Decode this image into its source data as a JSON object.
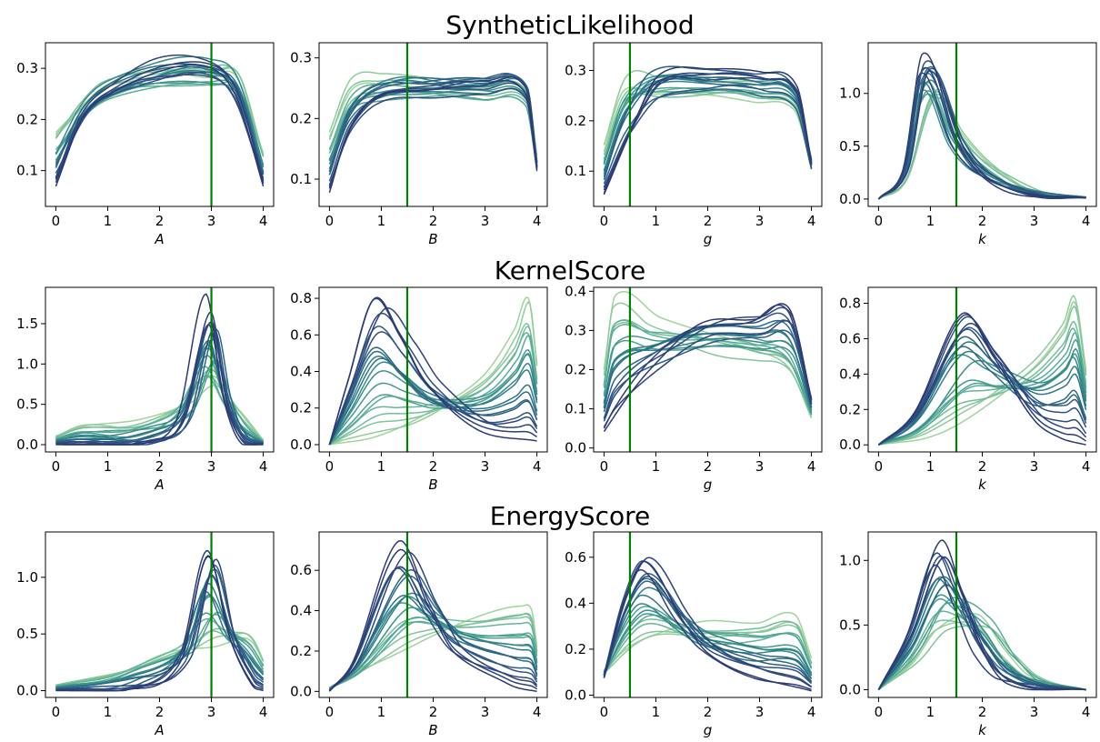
{
  "colors": {
    "truth_line": "#008000",
    "palette": [
      "#9fd49b",
      "#7cc29b",
      "#5cae98",
      "#44998f",
      "#338489",
      "#2b6e86",
      "#2d5a84",
      "#2f457e",
      "#2b3a73"
    ]
  },
  "chart_data": [
    {
      "row_title": "SyntheticLikelihood",
      "panels": [
        {
          "type": "line",
          "xlabel": "A",
          "xlim": [
            -0.2,
            4.2
          ],
          "ylim": [
            0.03,
            0.35
          ],
          "xticks": [
            "0",
            "1",
            "2",
            "3",
            "4"
          ],
          "yticks": [
            "0.1",
            "0.2",
            "0.3"
          ],
          "truth": 3.0,
          "n_curves": 20,
          "light_curve": [
            [
              0,
              0.17
            ],
            [
              0.5,
              0.22
            ],
            [
              1,
              0.26
            ],
            [
              2,
              0.28
            ],
            [
              3,
              0.28
            ],
            [
              3.5,
              0.28
            ],
            [
              4,
              0.13
            ]
          ],
          "dark_curve": [
            [
              0,
              0.07
            ],
            [
              0.5,
              0.2
            ],
            [
              1,
              0.25
            ],
            [
              2,
              0.3
            ],
            [
              3,
              0.3
            ],
            [
              3.5,
              0.24
            ],
            [
              4,
              0.07
            ]
          ]
        },
        {
          "type": "line",
          "xlabel": "B",
          "xlim": [
            -0.2,
            4.2
          ],
          "ylim": [
            0.055,
            0.325
          ],
          "xticks": [
            "0",
            "1",
            "2",
            "3",
            "4"
          ],
          "yticks": [
            "0.1",
            "0.2",
            "0.3"
          ],
          "truth": 1.5,
          "n_curves": 20,
          "light_curve": [
            [
              0,
              0.17
            ],
            [
              0.4,
              0.25
            ],
            [
              1,
              0.255
            ],
            [
              2,
              0.25
            ],
            [
              3,
              0.245
            ],
            [
              3.8,
              0.235
            ],
            [
              4,
              0.13
            ]
          ],
          "dark_curve": [
            [
              0,
              0.08
            ],
            [
              0.4,
              0.18
            ],
            [
              1,
              0.24
            ],
            [
              2,
              0.255
            ],
            [
              3,
              0.26
            ],
            [
              3.8,
              0.25
            ],
            [
              4,
              0.12
            ]
          ]
        },
        {
          "type": "line",
          "xlabel": "g",
          "xlim": [
            -0.2,
            4.2
          ],
          "ylim": [
            0.03,
            0.355
          ],
          "xticks": [
            "0",
            "1",
            "2",
            "3",
            "4"
          ],
          "yticks": [
            "0.1",
            "0.2",
            "0.3"
          ],
          "truth": 0.5,
          "n_curves": 20,
          "light_curve": [
            [
              0,
              0.15
            ],
            [
              0.4,
              0.28
            ],
            [
              1,
              0.275
            ],
            [
              2,
              0.265
            ],
            [
              3,
              0.26
            ],
            [
              3.7,
              0.24
            ],
            [
              4,
              0.12
            ]
          ],
          "dark_curve": [
            [
              0,
              0.05
            ],
            [
              0.5,
              0.17
            ],
            [
              1,
              0.27
            ],
            [
              2,
              0.285
            ],
            [
              3,
              0.275
            ],
            [
              3.7,
              0.25
            ],
            [
              4,
              0.11
            ]
          ]
        },
        {
          "type": "line",
          "xlabel": "k",
          "xlim": [
            -0.2,
            4.2
          ],
          "ylim": [
            -0.07,
            1.48
          ],
          "xticks": [
            "0",
            "1",
            "2",
            "3",
            "4"
          ],
          "yticks": [
            "0.0",
            "0.5",
            "1.0"
          ],
          "truth": 1.5,
          "n_curves": 20,
          "light_curve": [
            [
              0,
              0.0
            ],
            [
              0.5,
              0.2
            ],
            [
              1,
              1.0
            ],
            [
              1.5,
              0.6
            ],
            [
              2,
              0.35
            ],
            [
              3,
              0.08
            ],
            [
              4,
              0.02
            ]
          ],
          "dark_curve": [
            [
              0,
              0.0
            ],
            [
              0.5,
              0.3
            ],
            [
              0.85,
              1.3
            ],
            [
              1.5,
              0.5
            ],
            [
              2,
              0.2
            ],
            [
              3,
              0.04
            ],
            [
              4,
              0.01
            ]
          ]
        }
      ]
    },
    {
      "row_title": "KernelScore",
      "panels": [
        {
          "type": "line",
          "xlabel": "A",
          "xlim": [
            -0.2,
            4.2
          ],
          "ylim": [
            -0.09,
            1.95
          ],
          "xticks": [
            "0",
            "1",
            "2",
            "3",
            "4"
          ],
          "yticks": [
            "0.0",
            "0.5",
            "1.0",
            "1.5"
          ],
          "truth": 3.0,
          "n_curves": 20,
          "light_curve": [
            [
              0,
              0.1
            ],
            [
              0.5,
              0.22
            ],
            [
              1.5,
              0.25
            ],
            [
              2.5,
              0.5
            ],
            [
              3,
              0.7
            ],
            [
              3.5,
              0.4
            ],
            [
              4,
              0.05
            ]
          ],
          "dark_curve": [
            [
              0,
              0.0
            ],
            [
              2,
              0.0
            ],
            [
              2.5,
              0.3
            ],
            [
              3,
              1.75
            ],
            [
              3.3,
              0.6
            ],
            [
              3.6,
              0.05
            ],
            [
              4,
              0.0
            ]
          ]
        },
        {
          "type": "line",
          "xlabel": "B",
          "xlim": [
            -0.2,
            4.2
          ],
          "ylim": [
            -0.04,
            0.86
          ],
          "xticks": [
            "0",
            "1",
            "2",
            "3",
            "4"
          ],
          "yticks": [
            "0.0",
            "0.2",
            "0.4",
            "0.6",
            "0.8"
          ],
          "truth": 1.5,
          "n_curves": 20,
          "light_curve": [
            [
              0,
              0.0
            ],
            [
              1,
              0.05
            ],
            [
              2,
              0.15
            ],
            [
              3,
              0.35
            ],
            [
              3.6,
              0.6
            ],
            [
              3.85,
              0.76
            ],
            [
              4,
              0.42
            ]
          ],
          "dark_curve": [
            [
              0,
              0.0
            ],
            [
              0.4,
              0.35
            ],
            [
              0.95,
              0.8
            ],
            [
              1.5,
              0.6
            ],
            [
              2,
              0.35
            ],
            [
              3,
              0.08
            ],
            [
              4,
              0.02
            ]
          ]
        },
        {
          "type": "line",
          "xlabel": "g",
          "xlim": [
            -0.2,
            4.2
          ],
          "ylim": [
            -0.01,
            0.41
          ],
          "xticks": [
            "0",
            "1",
            "2",
            "3",
            "4"
          ],
          "yticks": [
            "0.0",
            "0.1",
            "0.2",
            "0.3",
            "0.4"
          ],
          "truth": 0.5,
          "n_curves": 20,
          "light_curve": [
            [
              0,
              0.19
            ],
            [
              0.2,
              0.37
            ],
            [
              1,
              0.32
            ],
            [
              2,
              0.27
            ],
            [
              3,
              0.24
            ],
            [
              3.6,
              0.2
            ],
            [
              4,
              0.08
            ]
          ],
          "dark_curve": [
            [
              0,
              0.04
            ],
            [
              0.5,
              0.13
            ],
            [
              1,
              0.2
            ],
            [
              2,
              0.3
            ],
            [
              3,
              0.32
            ],
            [
              3.6,
              0.34
            ],
            [
              4,
              0.12
            ]
          ]
        },
        {
          "type": "line",
          "xlabel": "k",
          "xlim": [
            -0.2,
            4.2
          ],
          "ylim": [
            -0.04,
            0.89
          ],
          "xticks": [
            "0",
            "1",
            "2",
            "3",
            "4"
          ],
          "yticks": [
            "0.0",
            "0.2",
            "0.4",
            "0.6",
            "0.8"
          ],
          "truth": 1.5,
          "n_curves": 20,
          "light_curve": [
            [
              0,
              0.0
            ],
            [
              1,
              0.05
            ],
            [
              2,
              0.2
            ],
            [
              3,
              0.45
            ],
            [
              3.6,
              0.7
            ],
            [
              3.8,
              0.85
            ],
            [
              4,
              0.43
            ]
          ],
          "dark_curve": [
            [
              0,
              0.0
            ],
            [
              0.7,
              0.2
            ],
            [
              1.6,
              0.8
            ],
            [
              2.2,
              0.55
            ],
            [
              3,
              0.15
            ],
            [
              3.5,
              0.04
            ],
            [
              4,
              0.0
            ]
          ]
        }
      ]
    },
    {
      "row_title": "EnergyScore",
      "panels": [
        {
          "type": "line",
          "xlabel": "A",
          "xlim": [
            -0.2,
            4.2
          ],
          "ylim": [
            -0.06,
            1.4
          ],
          "xticks": [
            "0",
            "1",
            "2",
            "3",
            "4"
          ],
          "yticks": [
            "0.0",
            "0.5",
            "1.0"
          ],
          "truth": 3.0,
          "n_curves": 20,
          "light_curve": [
            [
              0,
              0.05
            ],
            [
              1,
              0.15
            ],
            [
              2,
              0.3
            ],
            [
              3,
              0.4
            ],
            [
              3.6,
              0.5
            ],
            [
              3.8,
              0.45
            ],
            [
              4,
              0.27
            ]
          ],
          "dark_curve": [
            [
              0,
              0.0
            ],
            [
              1.5,
              0.01
            ],
            [
              2.5,
              0.3
            ],
            [
              3,
              1.3
            ],
            [
              3.4,
              0.5
            ],
            [
              3.8,
              0.05
            ],
            [
              4,
              0.0
            ]
          ]
        },
        {
          "type": "line",
          "xlabel": "B",
          "xlim": [
            -0.2,
            4.2
          ],
          "ylim": [
            -0.03,
            0.79
          ],
          "xticks": [
            "0",
            "1",
            "2",
            "3",
            "4"
          ],
          "yticks": [
            "0.0",
            "0.2",
            "0.4",
            "0.6"
          ],
          "truth": 1.5,
          "n_curves": 20,
          "light_curve": [
            [
              0,
              0.02
            ],
            [
              1,
              0.15
            ],
            [
              2,
              0.3
            ],
            [
              3,
              0.38
            ],
            [
              3.7,
              0.42
            ],
            [
              3.9,
              0.4
            ],
            [
              4,
              0.22
            ]
          ],
          "dark_curve": [
            [
              0,
              0.0
            ],
            [
              0.5,
              0.15
            ],
            [
              1.4,
              0.75
            ],
            [
              2,
              0.45
            ],
            [
              2.5,
              0.2
            ],
            [
              3.5,
              0.03
            ],
            [
              4,
              0.0
            ]
          ]
        },
        {
          "type": "line",
          "xlabel": "g",
          "xlim": [
            -0.2,
            4.2
          ],
          "ylim": [
            -0.01,
            0.71
          ],
          "xticks": [
            "0",
            "1",
            "2",
            "3",
            "4"
          ],
          "yticks": [
            "0.0",
            "0.2",
            "0.4",
            "0.6"
          ],
          "truth": 0.5,
          "n_curves": 20,
          "light_curve": [
            [
              0,
              0.1
            ],
            [
              0.5,
              0.2
            ],
            [
              1,
              0.25
            ],
            [
              2,
              0.28
            ],
            [
              3,
              0.3
            ],
            [
              3.7,
              0.33
            ],
            [
              4,
              0.15
            ]
          ],
          "dark_curve": [
            [
              0,
              0.08
            ],
            [
              0.4,
              0.45
            ],
            [
              0.8,
              0.62
            ],
            [
              1.5,
              0.35
            ],
            [
              2,
              0.2
            ],
            [
              3,
              0.08
            ],
            [
              4,
              0.02
            ]
          ]
        },
        {
          "type": "line",
          "xlabel": "k",
          "xlim": [
            -0.2,
            4.2
          ],
          "ylim": [
            -0.06,
            1.22
          ],
          "xticks": [
            "0",
            "1",
            "2",
            "3",
            "4"
          ],
          "yticks": [
            "0.0",
            "0.5",
            "1.0"
          ],
          "truth": 1.5,
          "n_curves": 20,
          "light_curve": [
            [
              0,
              0.0
            ],
            [
              0.7,
              0.2
            ],
            [
              1.2,
              0.45
            ],
            [
              2,
              0.55
            ],
            [
              2.5,
              0.3
            ],
            [
              3,
              0.1
            ],
            [
              4,
              0.0
            ]
          ],
          "dark_curve": [
            [
              0,
              0.0
            ],
            [
              0.6,
              0.45
            ],
            [
              1.2,
              1.12
            ],
            [
              1.6,
              0.75
            ],
            [
              2,
              0.3
            ],
            [
              2.5,
              0.05
            ],
            [
              4,
              0.0
            ]
          ]
        }
      ]
    }
  ]
}
